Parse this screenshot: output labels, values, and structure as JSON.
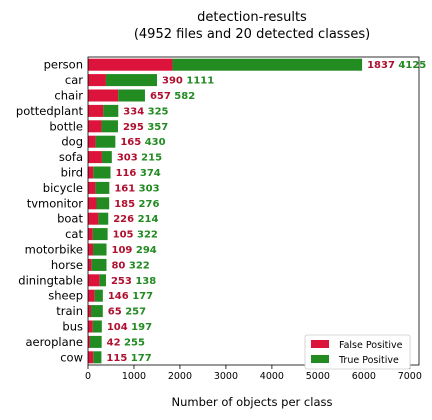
{
  "chart_data": {
    "type": "bar",
    "orientation": "horizontal",
    "stacked": true,
    "title": "detection-results",
    "subtitle": "(4952 files and 20 detected classes)",
    "xlabel": "Number of objects per class",
    "ylabel": "",
    "xlim": [
      0,
      7200
    ],
    "xticks": [
      0,
      1000,
      2000,
      3000,
      4000,
      5000,
      6000,
      7000
    ],
    "grid": false,
    "legend_position": "lower-right",
    "categories": [
      "person",
      "car",
      "chair",
      "pottedplant",
      "bottle",
      "dog",
      "sofa",
      "bird",
      "bicycle",
      "tvmonitor",
      "boat",
      "cat",
      "motorbike",
      "horse",
      "diningtable",
      "sheep",
      "train",
      "bus",
      "aeroplane",
      "cow"
    ],
    "series": [
      {
        "name": "False Positive",
        "color": "#dc143c",
        "values": [
          1837,
          390,
          657,
          334,
          295,
          165,
          303,
          116,
          161,
          185,
          226,
          105,
          109,
          80,
          253,
          146,
          65,
          104,
          42,
          115
        ]
      },
      {
        "name": "True Positive",
        "color": "#228b22",
        "values": [
          4125,
          1111,
          582,
          325,
          357,
          430,
          215,
          374,
          303,
          276,
          214,
          322,
          294,
          322,
          138,
          177,
          257,
          197,
          255,
          177
        ]
      }
    ]
  }
}
